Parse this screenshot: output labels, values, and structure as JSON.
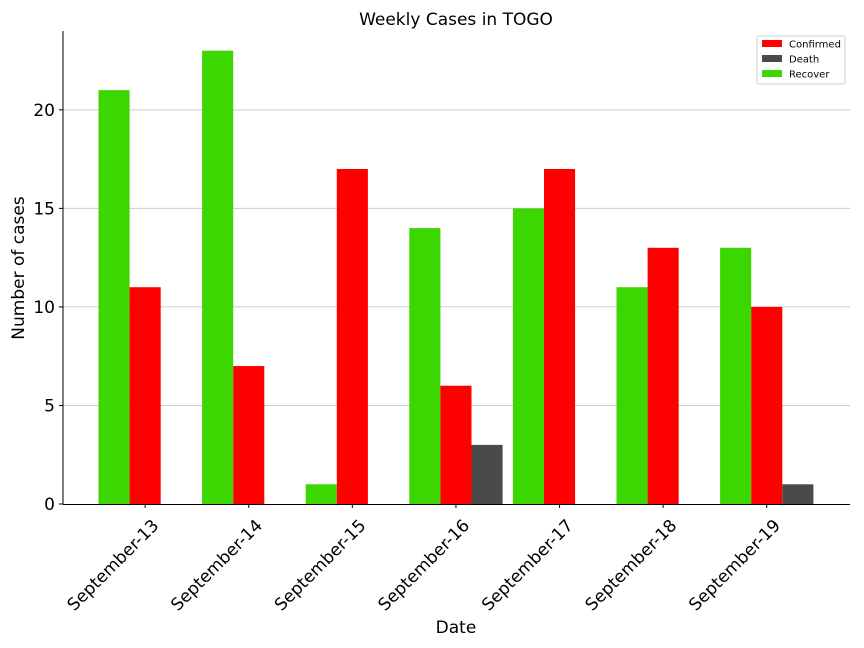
{
  "chart_data": {
    "type": "bar",
    "title": "Weekly Cases in TOGO",
    "xlabel": "Date",
    "ylabel": "Number of cases",
    "categories": [
      "September-13",
      "September-14",
      "September-15",
      "September-16",
      "September-17",
      "September-18",
      "September-19"
    ],
    "series": [
      {
        "name": "Confirmed",
        "color": "#ff0000",
        "values": [
          11,
          7,
          17,
          6,
          17,
          13,
          10
        ]
      },
      {
        "name": "Death",
        "color": "#4a4a4a",
        "values": [
          0,
          0,
          0,
          3,
          0,
          0,
          1
        ]
      },
      {
        "name": "Recover",
        "color": "#3cd600",
        "values": [
          21,
          23,
          1,
          14,
          15,
          11,
          13
        ]
      }
    ],
    "ylim": [
      0,
      24
    ],
    "yticks": [
      "0",
      "5",
      "10",
      "15",
      "20"
    ],
    "grid": "y",
    "legend": "top-right"
  }
}
